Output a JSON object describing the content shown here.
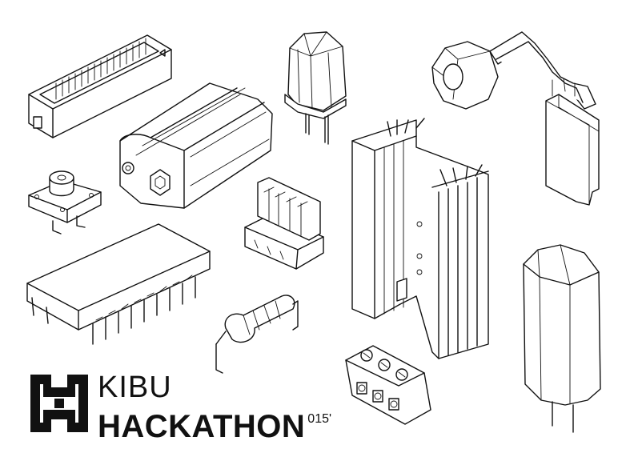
{
  "brand": {
    "line1": "KIBU",
    "line2": "HACKATHON",
    "year": "015'"
  },
  "colors": {
    "ink": "#111111",
    "background": "#ffffff"
  },
  "illustrations": [
    "pin-header-connector",
    "led",
    "potentiometer",
    "battery",
    "tactile-switch",
    "molex-connector",
    "heatsink",
    "ic-chip",
    "resistor",
    "terminal-block",
    "electrolytic-capacitor"
  ]
}
